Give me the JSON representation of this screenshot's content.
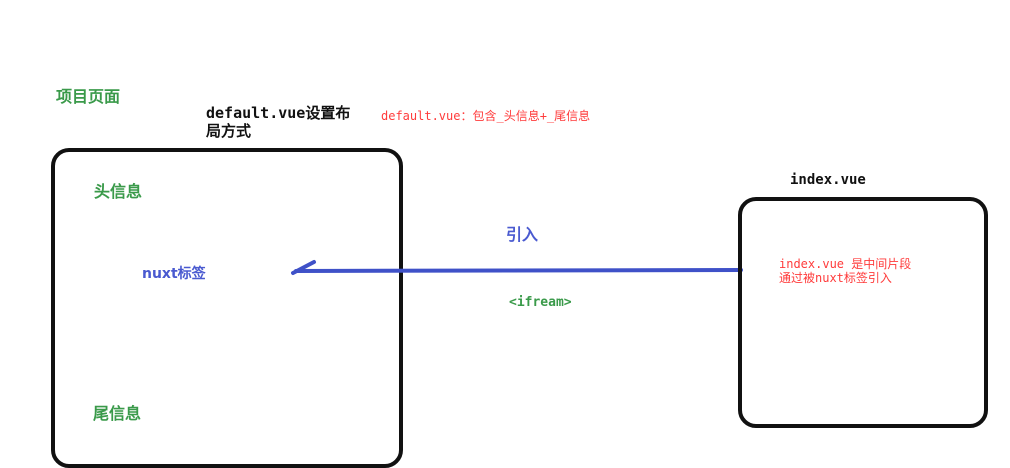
{
  "project_page_label": "项目页面",
  "layout_note_title": "default.vue设置布\n局方式",
  "layout_note_line1": "default.vue设置布",
  "layout_note_line2": "局方式",
  "default_vue_note": "default.vue：包含_头信息+_尾信息",
  "left_box": {
    "header_label": "头信息",
    "nuxt_tag_label": "nuxt标签",
    "footer_label": "尾信息"
  },
  "connector": {
    "import_label": "引入",
    "iframe_label": "<ifream>",
    "color": "#3f51c8"
  },
  "right_box": {
    "title": "index.vue",
    "note_line1": "index.vue 是中间片段",
    "note_line2": "通过被nuxt标签引入"
  },
  "colors": {
    "green": "#3a9a4a",
    "red": "#ff3b3b",
    "blue": "#4a5ad0",
    "border": "#111111"
  }
}
